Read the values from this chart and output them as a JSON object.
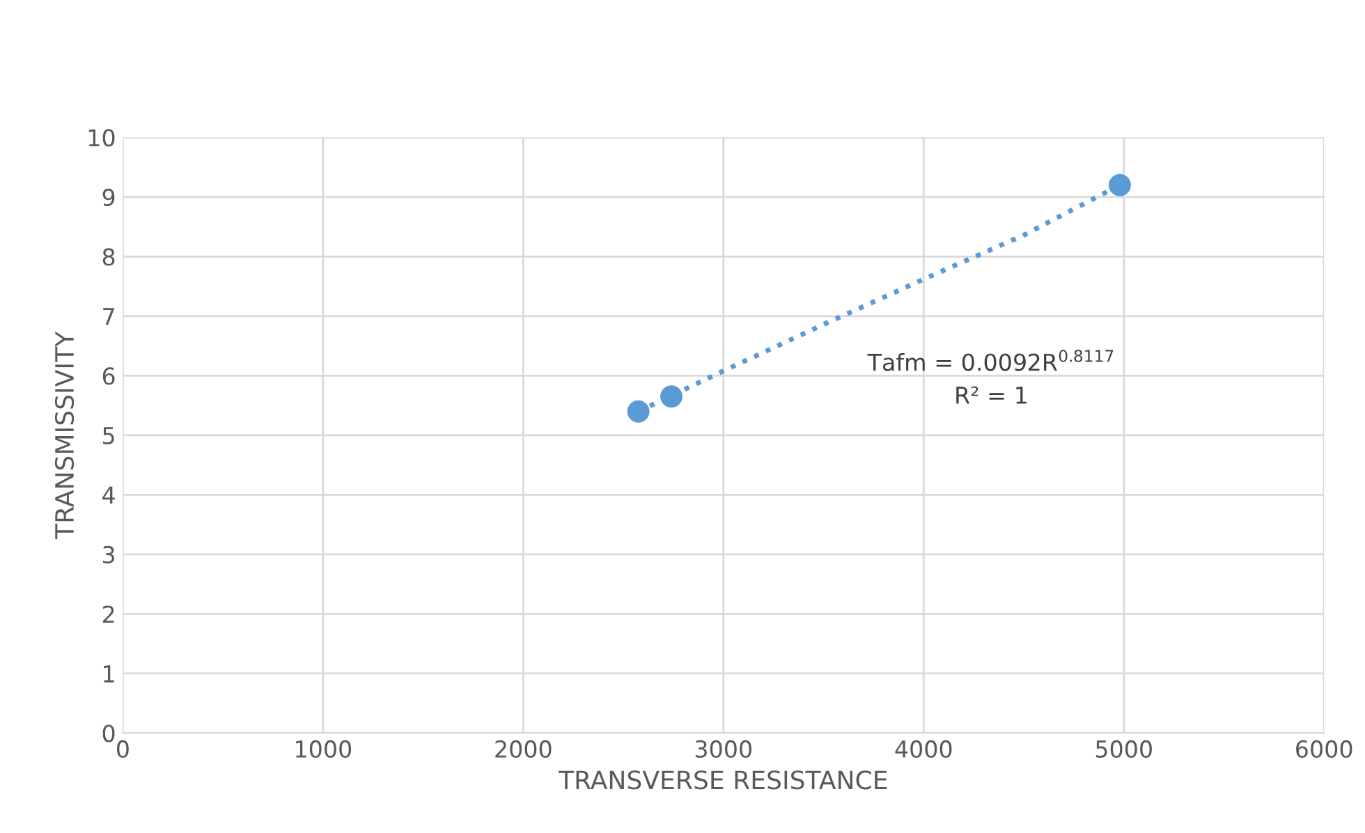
{
  "chart_data": {
    "type": "scatter",
    "xlabel": "TRANSVERSE RESISTANCE",
    "ylabel": "TRANSMISSIVITY",
    "xlim": [
      0,
      6000
    ],
    "xticks": [
      0,
      1000,
      2000,
      3000,
      4000,
      5000,
      6000
    ],
    "ylim": [
      0,
      10
    ],
    "yticks": [
      0,
      1,
      2,
      3,
      4,
      5,
      6,
      7,
      8,
      9,
      10
    ],
    "grid": true,
    "marker": "circle",
    "series": [
      {
        "color": "#5b9bd5",
        "x": [
          2575,
          2740,
          4980
        ],
        "values": [
          5.4,
          5.65,
          9.2
        ]
      },
      {
        "type": "line",
        "color": "#5b9bd5",
        "line_style": "dotted",
        "marker": "none",
        "x": [
          2575,
          3000,
          3500,
          4000,
          4500,
          4980
        ],
        "values": [
          5.4,
          6.08,
          6.86,
          7.62,
          8.36,
          9.2
        ]
      }
    ],
    "annotations": [
      "Tafm = 0.0092R$^{0.8117}$",
      "R² = 1"
    ]
  }
}
